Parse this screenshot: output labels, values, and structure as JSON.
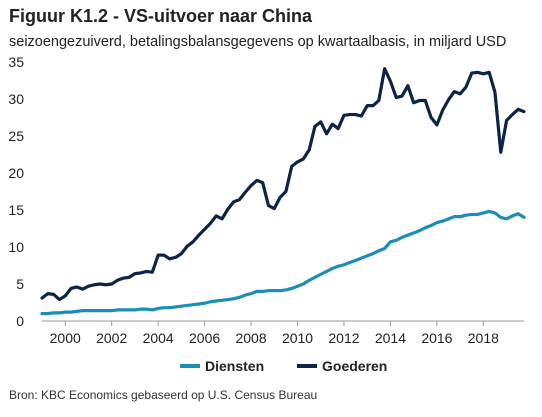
{
  "figure": {
    "title": "Figuur K1.2 - VS-uitvoer naar China",
    "subtitle": "seizoengezuiverd, betalingsbalansgegevens op kwartaalbasis, in miljard USD",
    "source": "Bron: KBC Economics gebaseerd op U.S. Census Bureau"
  },
  "chart_data": {
    "type": "line",
    "title": "Figuur K1.2 - VS-uitvoer naar China",
    "subtitle": "seizoengezuiverd, betalingsbalansgegevens op kwartaalbasis, in miljard USD",
    "xlabel": "",
    "ylabel": "",
    "xlim": [
      1999.0,
      2019.75
    ],
    "ylim": [
      0,
      35
    ],
    "x_ticks": [
      2000,
      2002,
      2004,
      2006,
      2008,
      2010,
      2012,
      2014,
      2016,
      2018
    ],
    "y_ticks": [
      0,
      5,
      10,
      15,
      20,
      25,
      30,
      35
    ],
    "grid": false,
    "legend_position": "bottom-center",
    "x": [
      1999.0,
      1999.25,
      1999.5,
      1999.75,
      2000.0,
      2000.25,
      2000.5,
      2000.75,
      2001.0,
      2001.25,
      2001.5,
      2001.75,
      2002.0,
      2002.25,
      2002.5,
      2002.75,
      2003.0,
      2003.25,
      2003.5,
      2003.75,
      2004.0,
      2004.25,
      2004.5,
      2004.75,
      2005.0,
      2005.25,
      2005.5,
      2005.75,
      2006.0,
      2006.25,
      2006.5,
      2006.75,
      2007.0,
      2007.25,
      2007.5,
      2007.75,
      2008.0,
      2008.25,
      2008.5,
      2008.75,
      2009.0,
      2009.25,
      2009.5,
      2009.75,
      2010.0,
      2010.25,
      2010.5,
      2010.75,
      2011.0,
      2011.25,
      2011.5,
      2011.75,
      2012.0,
      2012.25,
      2012.5,
      2012.75,
      2013.0,
      2013.25,
      2013.5,
      2013.75,
      2014.0,
      2014.25,
      2014.5,
      2014.75,
      2015.0,
      2015.25,
      2015.5,
      2015.75,
      2016.0,
      2016.25,
      2016.5,
      2016.75,
      2017.0,
      2017.25,
      2017.5,
      2017.75,
      2018.0,
      2018.25,
      2018.5,
      2018.75,
      2019.0,
      2019.25,
      2019.5,
      2019.75
    ],
    "series": [
      {
        "name": "Diensten",
        "color": "#1a8db8",
        "values": [
          1.0,
          1.0,
          1.1,
          1.1,
          1.2,
          1.2,
          1.3,
          1.4,
          1.4,
          1.4,
          1.4,
          1.4,
          1.4,
          1.5,
          1.5,
          1.5,
          1.5,
          1.6,
          1.6,
          1.5,
          1.7,
          1.8,
          1.8,
          1.9,
          2.0,
          2.1,
          2.2,
          2.3,
          2.4,
          2.6,
          2.7,
          2.8,
          2.9,
          3.0,
          3.2,
          3.5,
          3.7,
          4.0,
          4.0,
          4.1,
          4.1,
          4.1,
          4.2,
          4.4,
          4.7,
          5.0,
          5.5,
          5.9,
          6.3,
          6.7,
          7.1,
          7.4,
          7.6,
          7.9,
          8.2,
          8.5,
          8.8,
          9.1,
          9.5,
          9.8,
          10.7,
          10.9,
          11.3,
          11.6,
          11.9,
          12.2,
          12.6,
          12.9,
          13.3,
          13.5,
          13.8,
          14.1,
          14.1,
          14.3,
          14.4,
          14.4,
          14.6,
          14.8,
          14.6,
          14.0,
          13.8,
          14.2,
          14.5,
          14.0
        ]
      },
      {
        "name": "Goederen",
        "color": "#0b2447",
        "values": [
          3.1,
          3.7,
          3.6,
          2.9,
          3.4,
          4.4,
          4.6,
          4.3,
          4.7,
          4.9,
          5.0,
          4.9,
          5.0,
          5.5,
          5.8,
          5.9,
          6.4,
          6.5,
          6.7,
          6.6,
          8.9,
          8.9,
          8.4,
          8.6,
          9.1,
          10.1,
          10.7,
          11.6,
          12.4,
          13.2,
          14.2,
          13.8,
          15.1,
          16.1,
          16.4,
          17.4,
          18.3,
          19.0,
          18.7,
          15.6,
          15.2,
          16.7,
          17.5,
          20.9,
          21.5,
          21.9,
          23.1,
          26.3,
          26.9,
          25.3,
          26.6,
          26.0,
          27.8,
          27.9,
          27.9,
          27.7,
          29.1,
          29.1,
          29.8,
          34.1,
          32.4,
          30.2,
          30.4,
          31.8,
          29.5,
          29.8,
          29.8,
          27.5,
          26.5,
          28.5,
          29.9,
          31.0,
          30.7,
          31.6,
          33.5,
          33.6,
          33.4,
          33.6,
          30.9,
          22.8,
          27.1,
          27.9,
          28.6,
          28.3
        ]
      }
    ]
  }
}
